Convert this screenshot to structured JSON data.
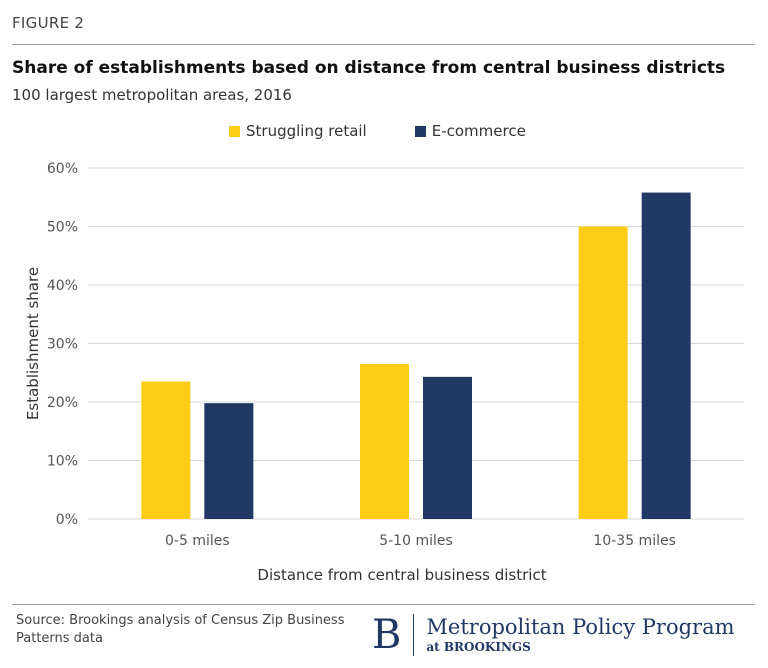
{
  "header": {
    "figure_label": "FIGURE 2",
    "title": "Share of establishments based on distance from central business districts",
    "subtitle": "100 largest metropolitan areas, 2016"
  },
  "colors": {
    "struggling_retail": "#FFCC16",
    "ecommerce": "#1F3864",
    "grid": "#d9d9d9",
    "axis_text": "#555555"
  },
  "chart_data": {
    "type": "bar",
    "categories": [
      "0-5 miles",
      "5-10 miles",
      "10-35 miles"
    ],
    "series": [
      {
        "name": "Struggling retail",
        "values": [
          23.5,
          26.5,
          50
        ]
      },
      {
        "name": "E-commerce",
        "values": [
          19.8,
          24.3,
          55.8
        ]
      }
    ],
    "ylim": [
      0,
      60
    ],
    "yticks": [
      0,
      10,
      20,
      30,
      40,
      50,
      60
    ],
    "ytick_labels": [
      "0%",
      "10%",
      "20%",
      "30%",
      "40%",
      "50%",
      "60%"
    ],
    "xlabel": "Distance from central business district",
    "ylabel": "Establishment share",
    "grid": true,
    "legend_position": "top"
  },
  "footer": {
    "source": "Source: Brookings analysis of Census Zip Business Patterns data",
    "logo_letter": "B",
    "logo_main": "Metropolitan Policy Program",
    "logo_sub": "at BROOKINGS"
  }
}
